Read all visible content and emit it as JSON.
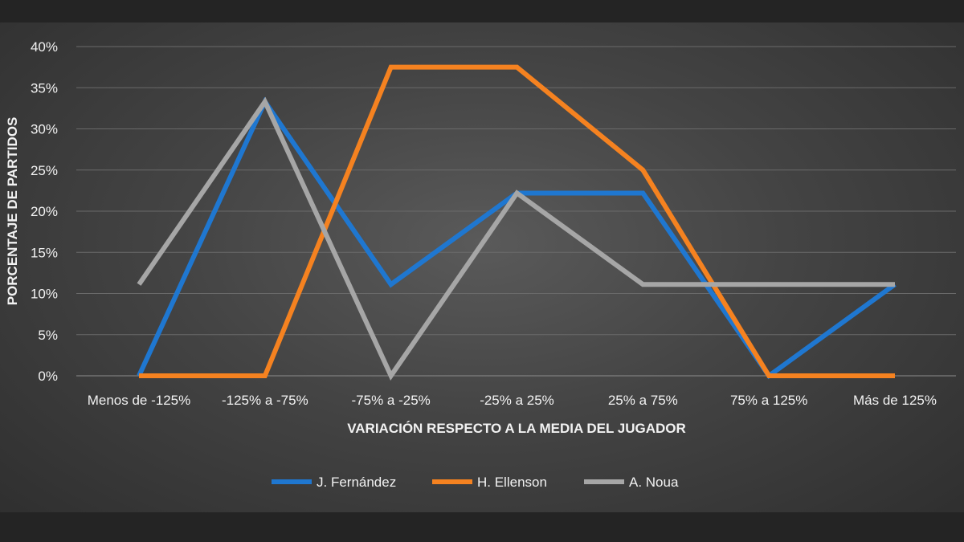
{
  "chart_data": {
    "type": "line",
    "title": "",
    "xlabel": "VARIACIÓN RESPECTO A LA MEDIA DEL JUGADOR",
    "ylabel": "PORCENTAJE DE PARTIDOS",
    "categories": [
      "Menos de -125%",
      "-125% a -75%",
      "-75% a -25%",
      "-25% a 25%",
      "25% a 75%",
      "75% a 125%",
      "Más de 125%"
    ],
    "yticks": [
      "0%",
      "5%",
      "10%",
      "15%",
      "20%",
      "25%",
      "30%",
      "35%",
      "40%"
    ],
    "ylim": [
      0,
      40
    ],
    "grid": true,
    "legend_position": "bottom",
    "series": [
      {
        "name": "J. Fernández",
        "color": "#1f77d0",
        "values": [
          0,
          33.3,
          11.1,
          22.2,
          22.2,
          0,
          11.1
        ]
      },
      {
        "name": "H. Ellenson",
        "color": "#f58220",
        "values": [
          0,
          0,
          37.5,
          37.5,
          25,
          0,
          0
        ]
      },
      {
        "name": "A. Noua",
        "color": "#a6a6a6",
        "values": [
          11.1,
          33.3,
          0,
          22.2,
          11.1,
          11.1,
          11.1
        ]
      }
    ]
  }
}
